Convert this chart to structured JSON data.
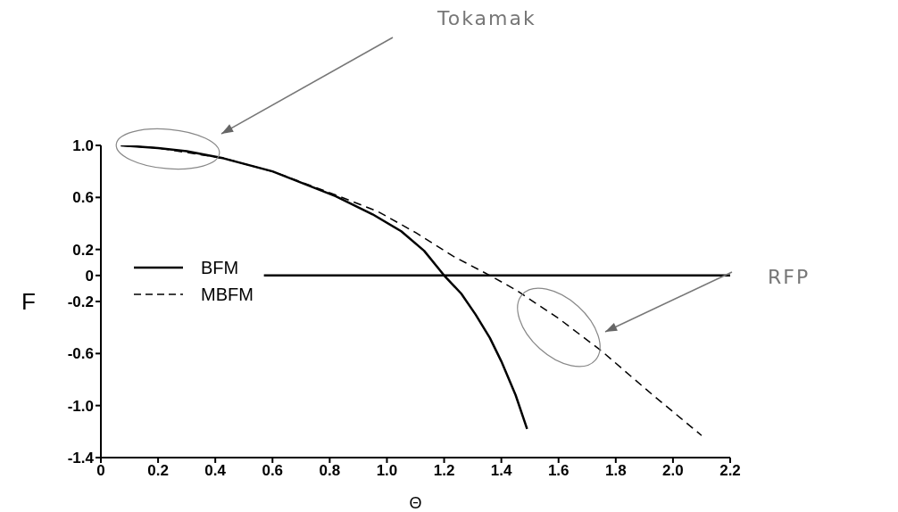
{
  "chart_data": {
    "type": "line",
    "xlabel": "Θ",
    "ylabel": "F",
    "xlim": [
      0,
      2.2
    ],
    "ylim": [
      -1.4,
      1.0
    ],
    "xticks": [
      {
        "value": 0,
        "label": "0"
      },
      {
        "value": 0.2,
        "label": "0.2"
      },
      {
        "value": 0.4,
        "label": "0.4"
      },
      {
        "value": 0.6,
        "label": "0.6"
      },
      {
        "value": 0.8,
        "label": "0.8"
      },
      {
        "value": 1.0,
        "label": "1.0"
      },
      {
        "value": 1.2,
        "label": "1.2"
      },
      {
        "value": 1.4,
        "label": "1.4"
      },
      {
        "value": 1.6,
        "label": "1.6"
      },
      {
        "value": 1.8,
        "label": "1.8"
      },
      {
        "value": 2.0,
        "label": "2.0"
      },
      {
        "value": 2.2,
        "label": "2.2"
      }
    ],
    "yticks": [
      {
        "value": 1.0,
        "label": "1.0"
      },
      {
        "value": 0.6,
        "label": "0.6"
      },
      {
        "value": 0.2,
        "label": "0.2"
      },
      0,
      {
        "value": -0.2,
        "label": "-0.2"
      },
      {
        "value": -0.6,
        "label": "-0.6"
      },
      {
        "value": -1.0,
        "label": "-1.0"
      },
      {
        "value": -1.4,
        "label": "-1.4"
      }
    ],
    "legend": "left",
    "marker": "none",
    "series": [
      {
        "name": "BFM",
        "color": "#000000",
        "line_style": "solid",
        "x": [
          0.07,
          0.2,
          0.3,
          0.43,
          0.6,
          0.82,
          0.95,
          1.05,
          1.13,
          1.2,
          1.26,
          1.31,
          1.36,
          1.4,
          1.45,
          1.49
        ],
        "values": [
          1.0,
          0.98,
          0.955,
          0.9,
          0.8,
          0.61,
          0.47,
          0.34,
          0.19,
          0.0,
          -0.14,
          -0.3,
          -0.48,
          -0.66,
          -0.92,
          -1.18
        ]
      },
      {
        "name": "MBFM",
        "color": "#000000",
        "line_style": "dashed",
        "x": [
          0.07,
          0.2,
          0.43,
          0.6,
          0.82,
          0.97,
          1.1,
          1.23,
          1.36,
          1.45,
          1.6,
          1.75,
          1.93,
          2.1
        ],
        "values": [
          1.0,
          0.98,
          0.9,
          0.8,
          0.62,
          0.49,
          0.33,
          0.15,
          0.0,
          -0.11,
          -0.33,
          -0.58,
          -0.92,
          -1.23
        ]
      },
      {
        "color": "#000000",
        "line_style": "solid",
        "x": [
          0.57,
          2.2
        ],
        "values": [
          0,
          0
        ]
      }
    ],
    "annotations": [
      "Tokamak",
      "RFP"
    ]
  }
}
